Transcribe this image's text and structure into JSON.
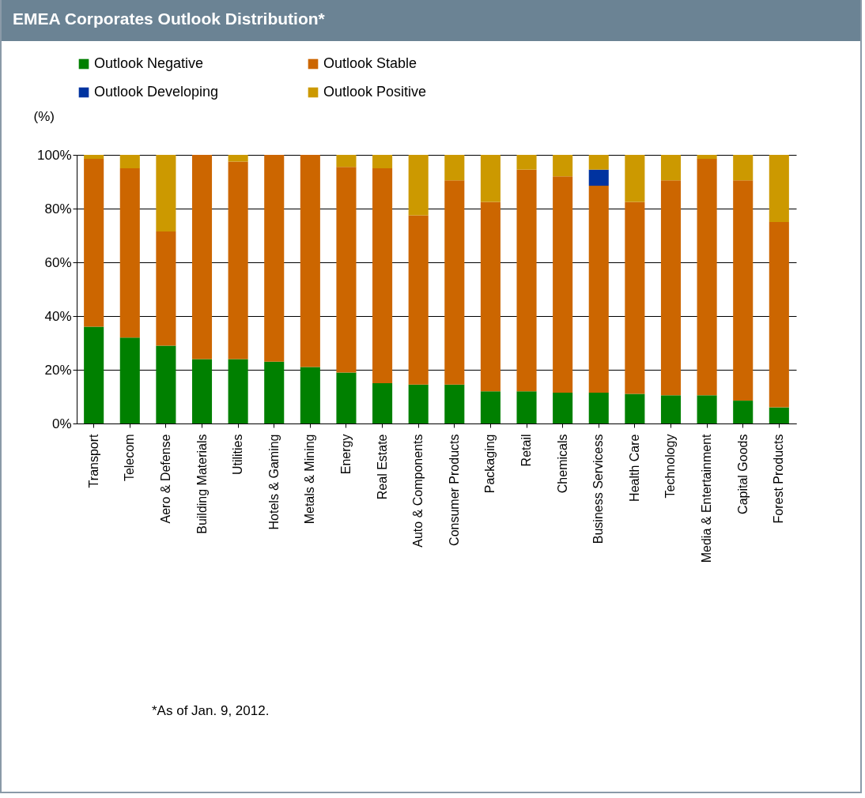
{
  "chart_data": {
    "type": "bar",
    "title": "EMEA Corporates Outlook Distribution*",
    "ylabel": "(%)",
    "stacked": true,
    "legend": "top",
    "grid": "y",
    "categories": [
      "Transport",
      "Telecom",
      "Aero & Defense",
      "Building Materials",
      "Utilities",
      "Hotels & Gaming",
      "Metals & Mining",
      "Energy",
      "Real Estate",
      "Auto & Components",
      "Consumer Products",
      "Packaging",
      "Retail",
      "Chemicals",
      "Business Servicess",
      "Health Care",
      "Technology",
      "Media & Entertainment",
      "Capital Goods",
      "Forest Products"
    ],
    "series": [
      {
        "name": "Outlook Negative",
        "color": "#008000",
        "values": [
          36,
          32,
          29,
          24,
          24,
          23,
          21,
          19,
          15,
          14.5,
          14.5,
          12,
          12,
          11.5,
          11.5,
          11,
          10.5,
          10.5,
          8.5,
          6
        ]
      },
      {
        "name": "Outlook Stable",
        "color": "#cc6600",
        "values": [
          62.5,
          63,
          42.5,
          76,
          73.5,
          77,
          79,
          76.5,
          80,
          63,
          76,
          70.5,
          82.5,
          80.5,
          77,
          71.5,
          80,
          88,
          82,
          69
        ]
      },
      {
        "name": "Outlook Developing",
        "color": "#0033a0",
        "values": [
          0,
          0,
          0,
          0,
          0,
          0,
          0,
          0,
          0,
          0,
          0,
          0,
          0,
          0,
          6,
          0,
          0,
          0,
          0,
          0
        ]
      },
      {
        "name": "Outlook Positive",
        "color": "#cc9900",
        "values": [
          1.5,
          5,
          28.5,
          0,
          2.5,
          0,
          0,
          4.5,
          5,
          22.5,
          9.5,
          17.5,
          5.5,
          8,
          5.5,
          17.5,
          9.5,
          1.5,
          9.5,
          25
        ]
      }
    ],
    "ylim": [
      0,
      100
    ],
    "yticks": [
      {
        "value": 0,
        "label": "0%"
      },
      {
        "value": 20,
        "label": "20%"
      },
      {
        "value": 40,
        "label": "40%"
      },
      {
        "value": 60,
        "label": "60%"
      },
      {
        "value": 80,
        "label": "80%"
      },
      {
        "value": 100,
        "label": "100%"
      }
    ],
    "annotations": [
      "*As of Jan. 9, 2012."
    ]
  }
}
